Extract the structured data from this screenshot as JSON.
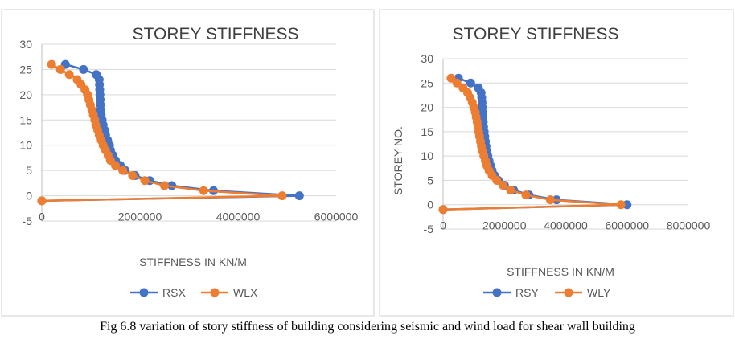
{
  "caption": "Fig 6.8 variation of story stiffness of building considering seismic and wind load for shear wall building",
  "colors": {
    "series1": "#4472C4",
    "series2": "#ED7D31",
    "axis_text": "#595959",
    "title_text": "#404040",
    "grid": "#D9D9D9",
    "border": "#D0D0D0"
  },
  "chart_data": [
    {
      "type": "scatter",
      "title": "STOREY STIFFNESS",
      "xlabel": "STIFFNESS IN KN/M",
      "ylabel": "",
      "xlim": [
        0,
        6000000
      ],
      "ylim": [
        -5,
        30
      ],
      "xticks": [
        "0",
        "2000000",
        "4000000",
        "6000000"
      ],
      "yticks": [
        "-5",
        "0",
        "5",
        "10",
        "15",
        "20",
        "25",
        "30"
      ],
      "legend": "bottom",
      "grid": true,
      "series": [
        {
          "name": "RSX",
          "color": "#4472C4",
          "points": [
            [
              0,
              -1
            ],
            [
              5250000,
              0
            ],
            [
              3500000,
              1
            ],
            [
              2650000,
              2
            ],
            [
              2200000,
              3
            ],
            [
              1900000,
              4
            ],
            [
              1700000,
              5
            ],
            [
              1600000,
              6
            ],
            [
              1500000,
              7
            ],
            [
              1450000,
              8
            ],
            [
              1400000,
              9
            ],
            [
              1380000,
              10
            ],
            [
              1340000,
              11
            ],
            [
              1300000,
              12
            ],
            [
              1280000,
              13
            ],
            [
              1250000,
              14
            ],
            [
              1230000,
              15
            ],
            [
              1210000,
              16
            ],
            [
              1200000,
              17
            ],
            [
              1195000,
              18
            ],
            [
              1190000,
              19
            ],
            [
              1185000,
              20
            ],
            [
              1180000,
              21
            ],
            [
              1175000,
              22
            ],
            [
              1170000,
              23
            ],
            [
              1110000,
              24
            ],
            [
              850000,
              25
            ],
            [
              480000,
              26
            ]
          ]
        },
        {
          "name": "WLX",
          "color": "#ED7D31",
          "points": [
            [
              0,
              -1
            ],
            [
              4900000,
              0
            ],
            [
              3300000,
              1
            ],
            [
              2500000,
              2
            ],
            [
              2100000,
              3
            ],
            [
              1850000,
              4
            ],
            [
              1650000,
              5
            ],
            [
              1500000,
              6
            ],
            [
              1400000,
              7
            ],
            [
              1350000,
              8
            ],
            [
              1300000,
              9
            ],
            [
              1250000,
              10
            ],
            [
              1210000,
              11
            ],
            [
              1170000,
              12
            ],
            [
              1140000,
              13
            ],
            [
              1100000,
              14
            ],
            [
              1080000,
              15
            ],
            [
              1050000,
              16
            ],
            [
              1020000,
              17
            ],
            [
              990000,
              18
            ],
            [
              960000,
              19
            ],
            [
              930000,
              20
            ],
            [
              880000,
              21
            ],
            [
              800000,
              22
            ],
            [
              720000,
              23
            ],
            [
              560000,
              24
            ],
            [
              380000,
              25
            ],
            [
              200000,
              26
            ]
          ]
        }
      ]
    },
    {
      "type": "scatter",
      "title": "STOREY STIFFNESS",
      "xlabel": "STIFFNESS IN KN/M",
      "ylabel": "STOREY NO.",
      "xlim": [
        0,
        8000000
      ],
      "ylim": [
        -5,
        30
      ],
      "xticks": [
        "0",
        "2000000",
        "4000000",
        "6000000",
        "8000000"
      ],
      "yticks": [
        "-5",
        "0",
        "5",
        "10",
        "15",
        "20",
        "25",
        "30"
      ],
      "legend": "bottom",
      "grid": true,
      "series": [
        {
          "name": "RSY",
          "color": "#4472C4",
          "points": [
            [
              0,
              -1
            ],
            [
              6000000,
              0
            ],
            [
              3700000,
              1
            ],
            [
              2800000,
              2
            ],
            [
              2300000,
              3
            ],
            [
              2000000,
              4
            ],
            [
              1800000,
              5
            ],
            [
              1680000,
              6
            ],
            [
              1600000,
              7
            ],
            [
              1550000,
              8
            ],
            [
              1500000,
              9
            ],
            [
              1460000,
              10
            ],
            [
              1430000,
              11
            ],
            [
              1400000,
              12
            ],
            [
              1380000,
              13
            ],
            [
              1360000,
              14
            ],
            [
              1340000,
              15
            ],
            [
              1320000,
              16
            ],
            [
              1310000,
              17
            ],
            [
              1300000,
              18
            ],
            [
              1290000,
              19
            ],
            [
              1280000,
              20
            ],
            [
              1270000,
              21
            ],
            [
              1260000,
              22
            ],
            [
              1240000,
              23
            ],
            [
              1150000,
              24
            ],
            [
              900000,
              25
            ],
            [
              500000,
              26
            ]
          ]
        },
        {
          "name": "WLY",
          "color": "#ED7D31",
          "points": [
            [
              0,
              -1
            ],
            [
              5800000,
              0
            ],
            [
              3500000,
              1
            ],
            [
              2700000,
              2
            ],
            [
              2200000,
              3
            ],
            [
              1950000,
              4
            ],
            [
              1750000,
              5
            ],
            [
              1600000,
              6
            ],
            [
              1500000,
              7
            ],
            [
              1430000,
              8
            ],
            [
              1380000,
              9
            ],
            [
              1330000,
              10
            ],
            [
              1290000,
              11
            ],
            [
              1250000,
              12
            ],
            [
              1220000,
              13
            ],
            [
              1190000,
              14
            ],
            [
              1160000,
              15
            ],
            [
              1140000,
              16
            ],
            [
              1110000,
              17
            ],
            [
              1080000,
              18
            ],
            [
              1050000,
              19
            ],
            [
              1000000,
              20
            ],
            [
              950000,
              21
            ],
            [
              880000,
              22
            ],
            [
              800000,
              23
            ],
            [
              650000,
              24
            ],
            [
              450000,
              25
            ],
            [
              260000,
              26
            ]
          ]
        }
      ]
    }
  ]
}
